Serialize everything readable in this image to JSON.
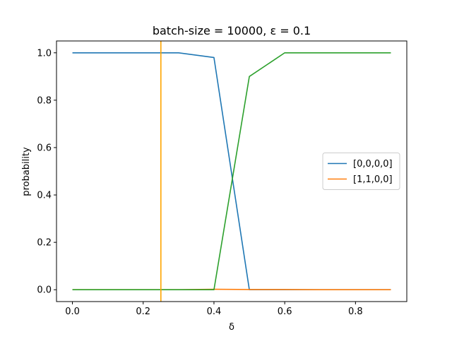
{
  "chart_data": {
    "type": "line",
    "title": "batch-size = 10000, ε = 0.1",
    "xlabel": "δ",
    "ylabel": "probability",
    "xlim": [
      -0.045,
      0.945
    ],
    "ylim": [
      -0.05,
      1.05
    ],
    "xticks": [
      0.0,
      0.2,
      0.4,
      0.6,
      0.8
    ],
    "xtick_labels": [
      "0.0",
      "0.2",
      "0.4",
      "0.6",
      "0.8"
    ],
    "yticks": [
      0.0,
      0.2,
      0.4,
      0.6,
      0.8,
      1.0
    ],
    "ytick_labels": [
      "0.0",
      "0.2",
      "0.4",
      "0.6",
      "0.8",
      "1.0"
    ],
    "grid": false,
    "legend_position": "center-right",
    "x": [
      0.0,
      0.1,
      0.2,
      0.3,
      0.4,
      0.5,
      0.6,
      0.7,
      0.8,
      0.9
    ],
    "series": [
      {
        "name": "[0,0,0,0]",
        "color": "#1f77b4",
        "values": [
          1.0,
          1.0,
          1.0,
          1.0,
          0.98,
          0.0,
          0.0,
          0.0,
          0.0,
          0.0
        ],
        "in_legend": true
      },
      {
        "name": "[1,1,0,0]",
        "color": "#ff7f0e",
        "values": [
          0.0,
          0.0,
          0.0,
          0.0,
          0.002,
          0.001,
          0.001,
          0.0,
          0.0,
          0.0
        ],
        "in_legend": true
      },
      {
        "color": "#2ca02c",
        "values": [
          0.0,
          0.0,
          0.0,
          0.0,
          0.0,
          0.9,
          1.0,
          1.0,
          1.0,
          1.0
        ],
        "in_legend": false
      }
    ],
    "vlines": [
      {
        "x": 0.25,
        "color": "#ffa500"
      }
    ]
  }
}
